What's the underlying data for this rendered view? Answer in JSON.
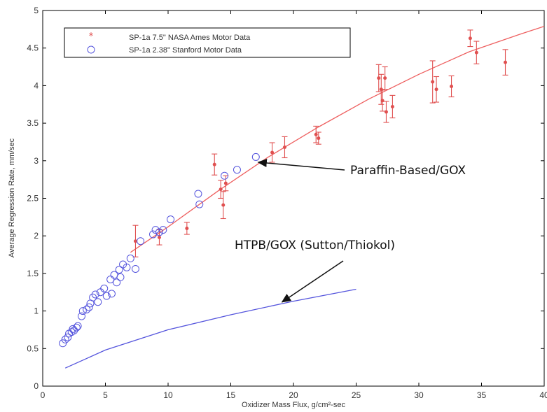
{
  "chart_data": {
    "type": "scatter",
    "xlabel": "Oxidizer Mass Flux, g/cm²-sec",
    "ylabel": "Average Regression Rate, mm/sec",
    "xlim": [
      0,
      40
    ],
    "ylim": [
      0,
      5
    ],
    "x_ticks": [
      "0",
      "5",
      "10",
      "15",
      "20",
      "25",
      "30",
      "35",
      "40"
    ],
    "y_ticks": [
      "0",
      "0.5",
      "1",
      "1.5",
      "2",
      "2.5",
      "3",
      "3.5",
      "4",
      "4.5",
      "5"
    ],
    "grid": false,
    "legend_position": "top-left",
    "series": [
      {
        "name": "SP-1a 7.5\" NASA Ames Motor Data",
        "kind": "points-with-errorbars",
        "color": "#e05050",
        "points": [
          {
            "x": 7.4,
            "y": 1.93,
            "err": 0.21
          },
          {
            "x": 9.3,
            "y": 1.98,
            "err": 0.1
          },
          {
            "x": 11.5,
            "y": 2.1,
            "err": 0.08
          },
          {
            "x": 13.7,
            "y": 2.95,
            "err": 0.14
          },
          {
            "x": 14.2,
            "y": 2.62,
            "err": 0.12
          },
          {
            "x": 14.4,
            "y": 2.41,
            "err": 0.18
          },
          {
            "x": 14.6,
            "y": 2.7,
            "err": 0.1
          },
          {
            "x": 18.3,
            "y": 3.11,
            "err": 0.13
          },
          {
            "x": 19.3,
            "y": 3.18,
            "err": 0.14
          },
          {
            "x": 21.8,
            "y": 3.35,
            "err": 0.11
          },
          {
            "x": 22.0,
            "y": 3.3,
            "err": 0.08
          },
          {
            "x": 26.8,
            "y": 4.1,
            "err": 0.18
          },
          {
            "x": 27.0,
            "y": 3.95,
            "err": 0.2
          },
          {
            "x": 27.1,
            "y": 3.8,
            "err": 0.14
          },
          {
            "x": 27.3,
            "y": 4.1,
            "err": 0.15
          },
          {
            "x": 27.4,
            "y": 3.65,
            "err": 0.14
          },
          {
            "x": 27.9,
            "y": 3.72,
            "err": 0.15
          },
          {
            "x": 31.1,
            "y": 4.05,
            "err": 0.28
          },
          {
            "x": 31.4,
            "y": 3.95,
            "err": 0.17
          },
          {
            "x": 32.6,
            "y": 3.99,
            "err": 0.14
          },
          {
            "x": 34.1,
            "y": 4.63,
            "err": 0.11
          },
          {
            "x": 34.6,
            "y": 4.44,
            "err": 0.15
          },
          {
            "x": 36.9,
            "y": 4.31,
            "err": 0.17
          }
        ]
      },
      {
        "name": "SP-1a 2.38\" Stanford Motor Data",
        "kind": "open-circles",
        "color": "#5555dd",
        "points": [
          {
            "x": 1.6,
            "y": 0.57
          },
          {
            "x": 1.8,
            "y": 0.62
          },
          {
            "x": 2.0,
            "y": 0.65
          },
          {
            "x": 2.1,
            "y": 0.7
          },
          {
            "x": 2.3,
            "y": 0.72
          },
          {
            "x": 2.4,
            "y": 0.76
          },
          {
            "x": 2.5,
            "y": 0.74
          },
          {
            "x": 2.7,
            "y": 0.78
          },
          {
            "x": 2.8,
            "y": 0.8
          },
          {
            "x": 3.1,
            "y": 0.93
          },
          {
            "x": 3.2,
            "y": 1.0
          },
          {
            "x": 3.5,
            "y": 1.02
          },
          {
            "x": 3.7,
            "y": 1.05
          },
          {
            "x": 3.8,
            "y": 1.1
          },
          {
            "x": 4.0,
            "y": 1.18
          },
          {
            "x": 4.2,
            "y": 1.22
          },
          {
            "x": 4.4,
            "y": 1.12
          },
          {
            "x": 4.6,
            "y": 1.25
          },
          {
            "x": 4.9,
            "y": 1.3
          },
          {
            "x": 5.1,
            "y": 1.2
          },
          {
            "x": 5.4,
            "y": 1.42
          },
          {
            "x": 5.5,
            "y": 1.23
          },
          {
            "x": 5.7,
            "y": 1.48
          },
          {
            "x": 5.9,
            "y": 1.38
          },
          {
            "x": 6.1,
            "y": 1.55
          },
          {
            "x": 6.2,
            "y": 1.45
          },
          {
            "x": 6.4,
            "y": 1.62
          },
          {
            "x": 6.7,
            "y": 1.58
          },
          {
            "x": 7.0,
            "y": 1.7
          },
          {
            "x": 7.4,
            "y": 1.56
          },
          {
            "x": 7.8,
            "y": 1.93
          },
          {
            "x": 8.8,
            "y": 2.02
          },
          {
            "x": 9.0,
            "y": 2.08
          },
          {
            "x": 9.3,
            "y": 2.05
          },
          {
            "x": 9.6,
            "y": 2.08
          },
          {
            "x": 10.2,
            "y": 2.22
          },
          {
            "x": 12.4,
            "y": 2.56
          },
          {
            "x": 12.5,
            "y": 2.42
          },
          {
            "x": 14.5,
            "y": 2.8
          },
          {
            "x": 15.5,
            "y": 2.88
          },
          {
            "x": 17.0,
            "y": 3.05
          }
        ]
      },
      {
        "name": "Paraffin-Based/GOX",
        "kind": "line",
        "color": "#ee6060",
        "x": [
          7,
          10,
          14,
          18,
          22,
          26,
          30,
          34,
          38,
          40
        ],
        "y": [
          1.78,
          2.12,
          2.6,
          3.05,
          3.45,
          3.82,
          4.15,
          4.45,
          4.68,
          4.79
        ]
      },
      {
        "name": "HTPB/GOX (Sutton/Thiokol)",
        "kind": "line",
        "color": "#5555dd",
        "x": [
          1.8,
          5,
          10,
          15,
          20,
          25
        ],
        "y": [
          0.24,
          0.48,
          0.75,
          0.95,
          1.13,
          1.29
        ]
      }
    ],
    "annotations": [
      {
        "text": "Paraffin-Based/GOX",
        "arrow_to": {
          "x": 17.2,
          "y": 2.98
        }
      },
      {
        "text": "HTPB/GOX (Sutton/Thiokol)",
        "arrow_to": {
          "x": 19.1,
          "y": 1.12
        }
      }
    ]
  }
}
